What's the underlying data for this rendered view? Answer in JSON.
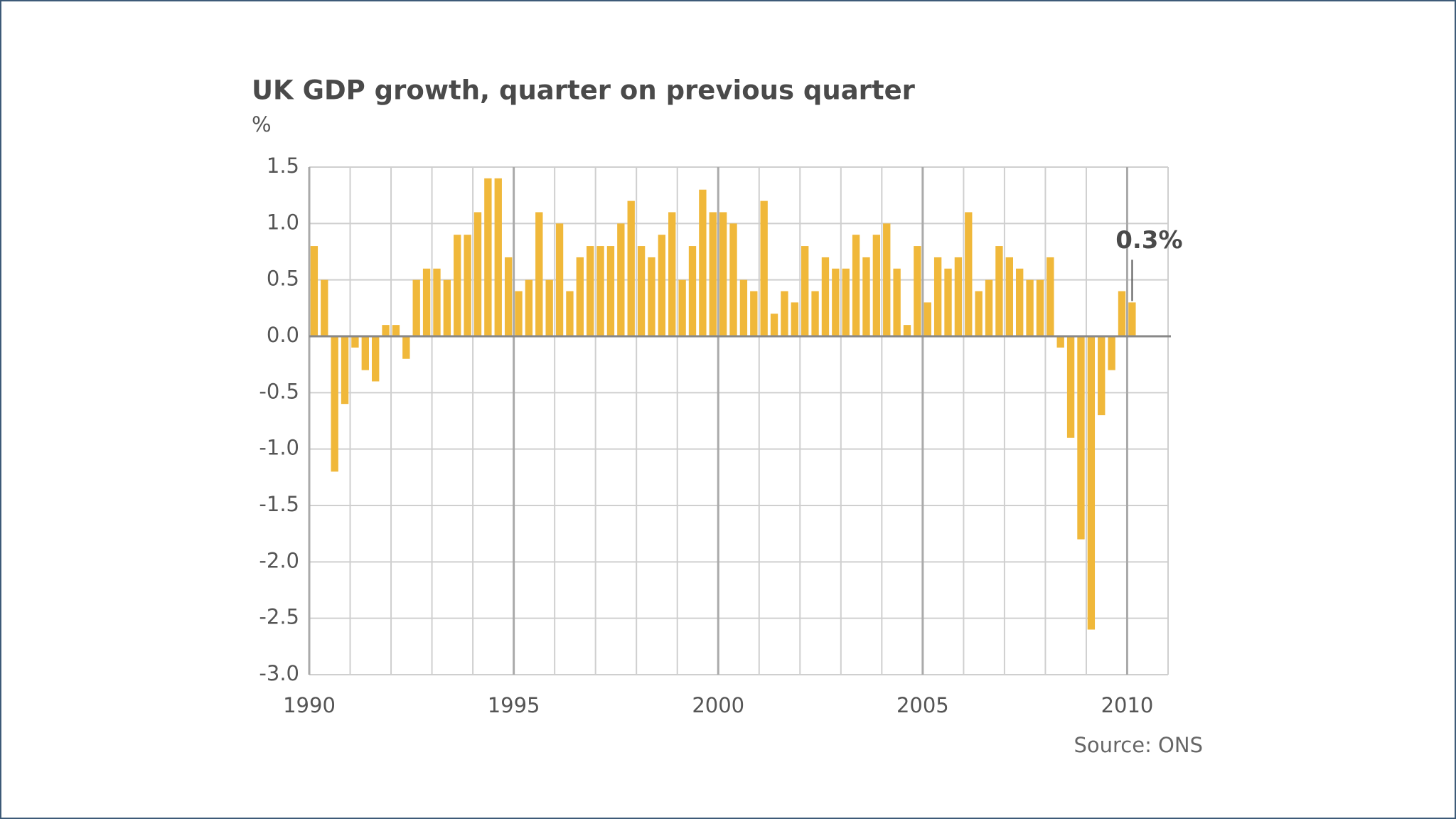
{
  "chart_data": {
    "type": "bar",
    "title": "UK GDP growth, quarter on previous quarter",
    "ylabel": "%",
    "source": "Source: ONS",
    "color": "#f0b83a",
    "x": [
      1990,
      1990.25,
      1990.5,
      1990.75,
      1991,
      1991.25,
      1991.5,
      1991.75,
      1992,
      1992.25,
      1992.5,
      1992.75,
      1993,
      1993.25,
      1993.5,
      1993.75,
      1994,
      1994.25,
      1994.5,
      1994.75,
      1995,
      1995.25,
      1995.5,
      1995.75,
      1996,
      1996.25,
      1996.5,
      1996.75,
      1997,
      1997.25,
      1997.5,
      1997.75,
      1998,
      1998.25,
      1998.5,
      1998.75,
      1999,
      1999.25,
      1999.5,
      1999.75,
      2000,
      2000.25,
      2000.5,
      2000.75,
      2001,
      2001.25,
      2001.5,
      2001.75,
      2002,
      2002.25,
      2002.5,
      2002.75,
      2003,
      2003.25,
      2003.5,
      2003.75,
      2004,
      2004.25,
      2004.5,
      2004.75,
      2005,
      2005.25,
      2005.5,
      2005.75,
      2006,
      2006.25,
      2006.5,
      2006.75,
      2007,
      2007.25,
      2007.5,
      2007.75,
      2008,
      2008.25,
      2008.5,
      2008.75,
      2009,
      2009.25,
      2009.5,
      2009.75,
      2010
    ],
    "values": [
      0.8,
      0.5,
      -1.2,
      -0.6,
      -0.1,
      -0.3,
      -0.4,
      0.1,
      0.1,
      -0.2,
      0.5,
      0.6,
      0.6,
      0.5,
      0.9,
      0.9,
      1.1,
      1.4,
      1.4,
      0.7,
      0.4,
      0.5,
      1.1,
      0.5,
      1.0,
      0.4,
      0.7,
      0.8,
      0.8,
      0.8,
      1.0,
      1.2,
      0.8,
      0.7,
      0.9,
      1.1,
      0.5,
      0.8,
      1.3,
      1.1,
      1.1,
      1.0,
      0.5,
      0.4,
      1.2,
      0.2,
      0.4,
      0.3,
      0.8,
      0.4,
      0.7,
      0.6,
      0.6,
      0.9,
      0.7,
      0.9,
      1.0,
      0.6,
      0.1,
      0.8,
      0.3,
      0.7,
      0.6,
      0.7,
      1.1,
      0.4,
      0.5,
      0.8,
      0.7,
      0.6,
      0.5,
      0.5,
      0.7,
      -0.1,
      -0.9,
      -1.8,
      -2.6,
      -0.7,
      -0.3,
      0.4,
      0.3
    ],
    "value_labels": [
      null,
      null,
      null,
      null,
      null,
      null,
      null,
      null,
      null,
      null,
      null,
      null,
      null,
      null,
      null,
      null,
      null,
      null,
      null,
      null,
      null,
      null,
      null,
      null,
      null,
      null,
      null,
      null,
      null,
      null,
      null,
      null,
      null,
      null,
      null,
      null,
      null,
      null,
      null,
      null,
      null,
      null,
      null,
      null,
      null,
      null,
      null,
      null,
      null,
      null,
      null,
      null,
      null,
      null,
      null,
      null,
      null,
      null,
      null,
      null,
      null,
      null,
      null,
      null,
      null,
      null,
      null,
      null,
      null,
      null,
      null,
      null,
      null,
      null,
      null,
      null,
      null,
      null,
      null,
      null,
      "0.3%"
    ],
    "xlim": [
      1990,
      2011
    ],
    "xticks": [
      1990,
      1995,
      2000,
      2005,
      2010
    ],
    "x_minor_ticks": [
      1991,
      1992,
      1993,
      1994,
      1996,
      1997,
      1998,
      1999,
      2001,
      2002,
      2003,
      2004,
      2006,
      2007,
      2008,
      2009,
      2011
    ],
    "ylim": [
      -3.0,
      1.5
    ],
    "yticks": [
      {
        "value": 1.5,
        "label": "1.5"
      },
      {
        "value": 1.0,
        "label": "1.0"
      },
      {
        "value": 0.5,
        "label": "0.5"
      },
      {
        "value": 0.0,
        "label": "0.0"
      },
      {
        "value": -0.5,
        "label": "-0.5"
      },
      {
        "value": -1.0,
        "label": "-1.0"
      },
      {
        "value": -1.5,
        "label": "-1.5"
      },
      {
        "value": -2.0,
        "label": "-2.0"
      },
      {
        "value": -2.5,
        "label": "-2.5"
      },
      {
        "value": -3.0,
        "label": "-3.0"
      }
    ],
    "grid": true
  }
}
